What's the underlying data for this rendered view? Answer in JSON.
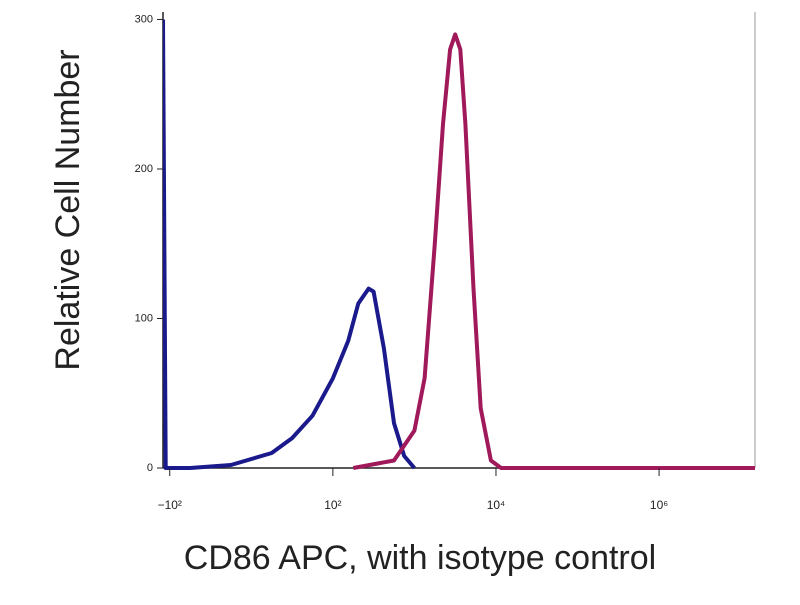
{
  "chart_data": {
    "type": "line",
    "xlabel": "CD86 APC, with isotype control",
    "ylabel": "Relative Cell Number",
    "xscale": "symlog",
    "linthresh": 100,
    "xlim": [
      -121,
      15000000
    ],
    "ylim": [
      0,
      305
    ],
    "xticks": [
      {
        "value": -100,
        "label": "−10²"
      },
      {
        "value": 100,
        "label": "10²"
      },
      {
        "value": 10000,
        "label": "10⁴"
      },
      {
        "value": 1000000,
        "label": "10⁶"
      }
    ],
    "yticks": [
      0,
      100,
      200,
      300
    ],
    "series": [
      {
        "color": "#1a1a8c",
        "x": [
          -121,
          -112,
          -75,
          -25,
          25,
          50,
          75,
          100,
          154,
          205,
          274,
          316,
          422,
          562,
          750,
          1000
        ],
        "values": [
          300,
          0,
          0,
          2,
          10,
          20,
          35,
          60,
          85,
          110,
          120,
          118,
          80,
          30,
          8,
          0
        ]
      },
      {
        "color": "#a0195a",
        "x": [
          178,
          562,
          1000,
          1334,
          1778,
          2239,
          2738,
          3162,
          3652,
          4217,
          5309,
          6494,
          8660,
          11548,
          15000000
        ],
        "values": [
          0,
          5,
          25,
          60,
          150,
          230,
          280,
          290,
          280,
          230,
          120,
          40,
          5,
          0,
          0
        ]
      }
    ]
  }
}
